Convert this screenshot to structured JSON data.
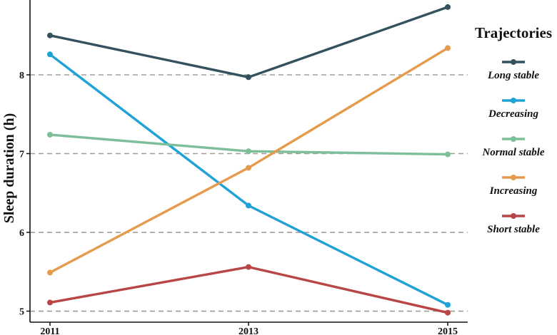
{
  "chart_data": {
    "type": "line",
    "ylabel": "Sleep duration (h)",
    "xlabel": "",
    "x": [
      "2011",
      "2013",
      "2015"
    ],
    "ylim": [
      4.86,
      8.95
    ],
    "yticks": [
      "5",
      "6",
      "7",
      "8"
    ],
    "grid": "horizontal dashed",
    "legend": {
      "title": "Trajectories",
      "placement": "right"
    },
    "series": [
      {
        "name": "Long stable",
        "color": "#34515e",
        "values": [
          8.5,
          7.97,
          8.86
        ]
      },
      {
        "name": "Decreasing",
        "color": "#1fa2d6",
        "values": [
          8.26,
          6.34,
          5.08
        ]
      },
      {
        "name": "Normal stable",
        "color": "#7dbf9a",
        "values": [
          7.24,
          7.03,
          6.99
        ]
      },
      {
        "name": "Increasing",
        "color": "#e69a4b",
        "values": [
          5.49,
          6.82,
          8.34
        ]
      },
      {
        "name": "Short stable",
        "color": "#b84646",
        "values": [
          5.11,
          5.56,
          4.98
        ]
      }
    ]
  }
}
